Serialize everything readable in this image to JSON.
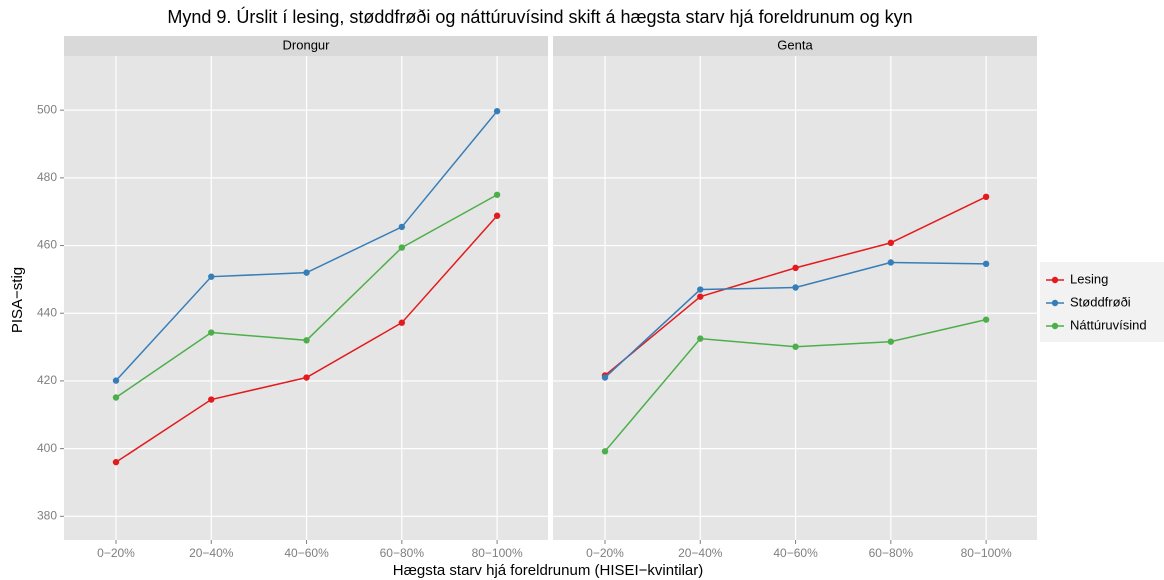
{
  "title": "Mynd 9. Úrslit í lesing, støddfrøði og náttúruvísind skift á hægsta starv hjá foreldrunum og kyn",
  "x_label": "Hægsta starv hjá foreldrunum (HISEI−kvintilar)",
  "y_label": "PISA−stig",
  "legend": "right",
  "chart_data": [
    {
      "type": "line",
      "title": "Drongur",
      "categories": [
        "0−20%",
        "20−40%",
        "40−60%",
        "60−80%",
        "80−100%"
      ],
      "series": [
        {
          "name": "Lesing",
          "color": "#e41a1c",
          "values": [
            396,
            414.5,
            421,
            437.2,
            468.8
          ]
        },
        {
          "name": "Støddfrøði",
          "color": "#377eb8",
          "values": [
            420.1,
            450.8,
            452,
            465.5,
            499.7
          ]
        },
        {
          "name": "Náttúruvísind",
          "color": "#4daf4a",
          "values": [
            415.1,
            434.3,
            432,
            459.4,
            475
          ]
        }
      ],
      "ylim": [
        373,
        516
      ],
      "yticks": [
        380,
        400,
        420,
        440,
        460,
        480,
        500
      ],
      "grid": true
    },
    {
      "type": "line",
      "title": "Genta",
      "categories": [
        "0−20%",
        "20−40%",
        "40−60%",
        "60−80%",
        "80−100%"
      ],
      "series": [
        {
          "name": "Lesing",
          "color": "#e41a1c",
          "values": [
            421.6,
            444.9,
            453.4,
            460.8,
            474.4
          ]
        },
        {
          "name": "Støddfrøði",
          "color": "#377eb8",
          "values": [
            421,
            447,
            447.6,
            455,
            454.6
          ]
        },
        {
          "name": "Náttúruvísind",
          "color": "#4daf4a",
          "values": [
            399.2,
            432.5,
            430.1,
            431.6,
            438.1
          ]
        }
      ],
      "ylim": [
        373,
        516
      ],
      "yticks": [
        380,
        400,
        420,
        440,
        460,
        480,
        500
      ],
      "grid": true
    }
  ]
}
